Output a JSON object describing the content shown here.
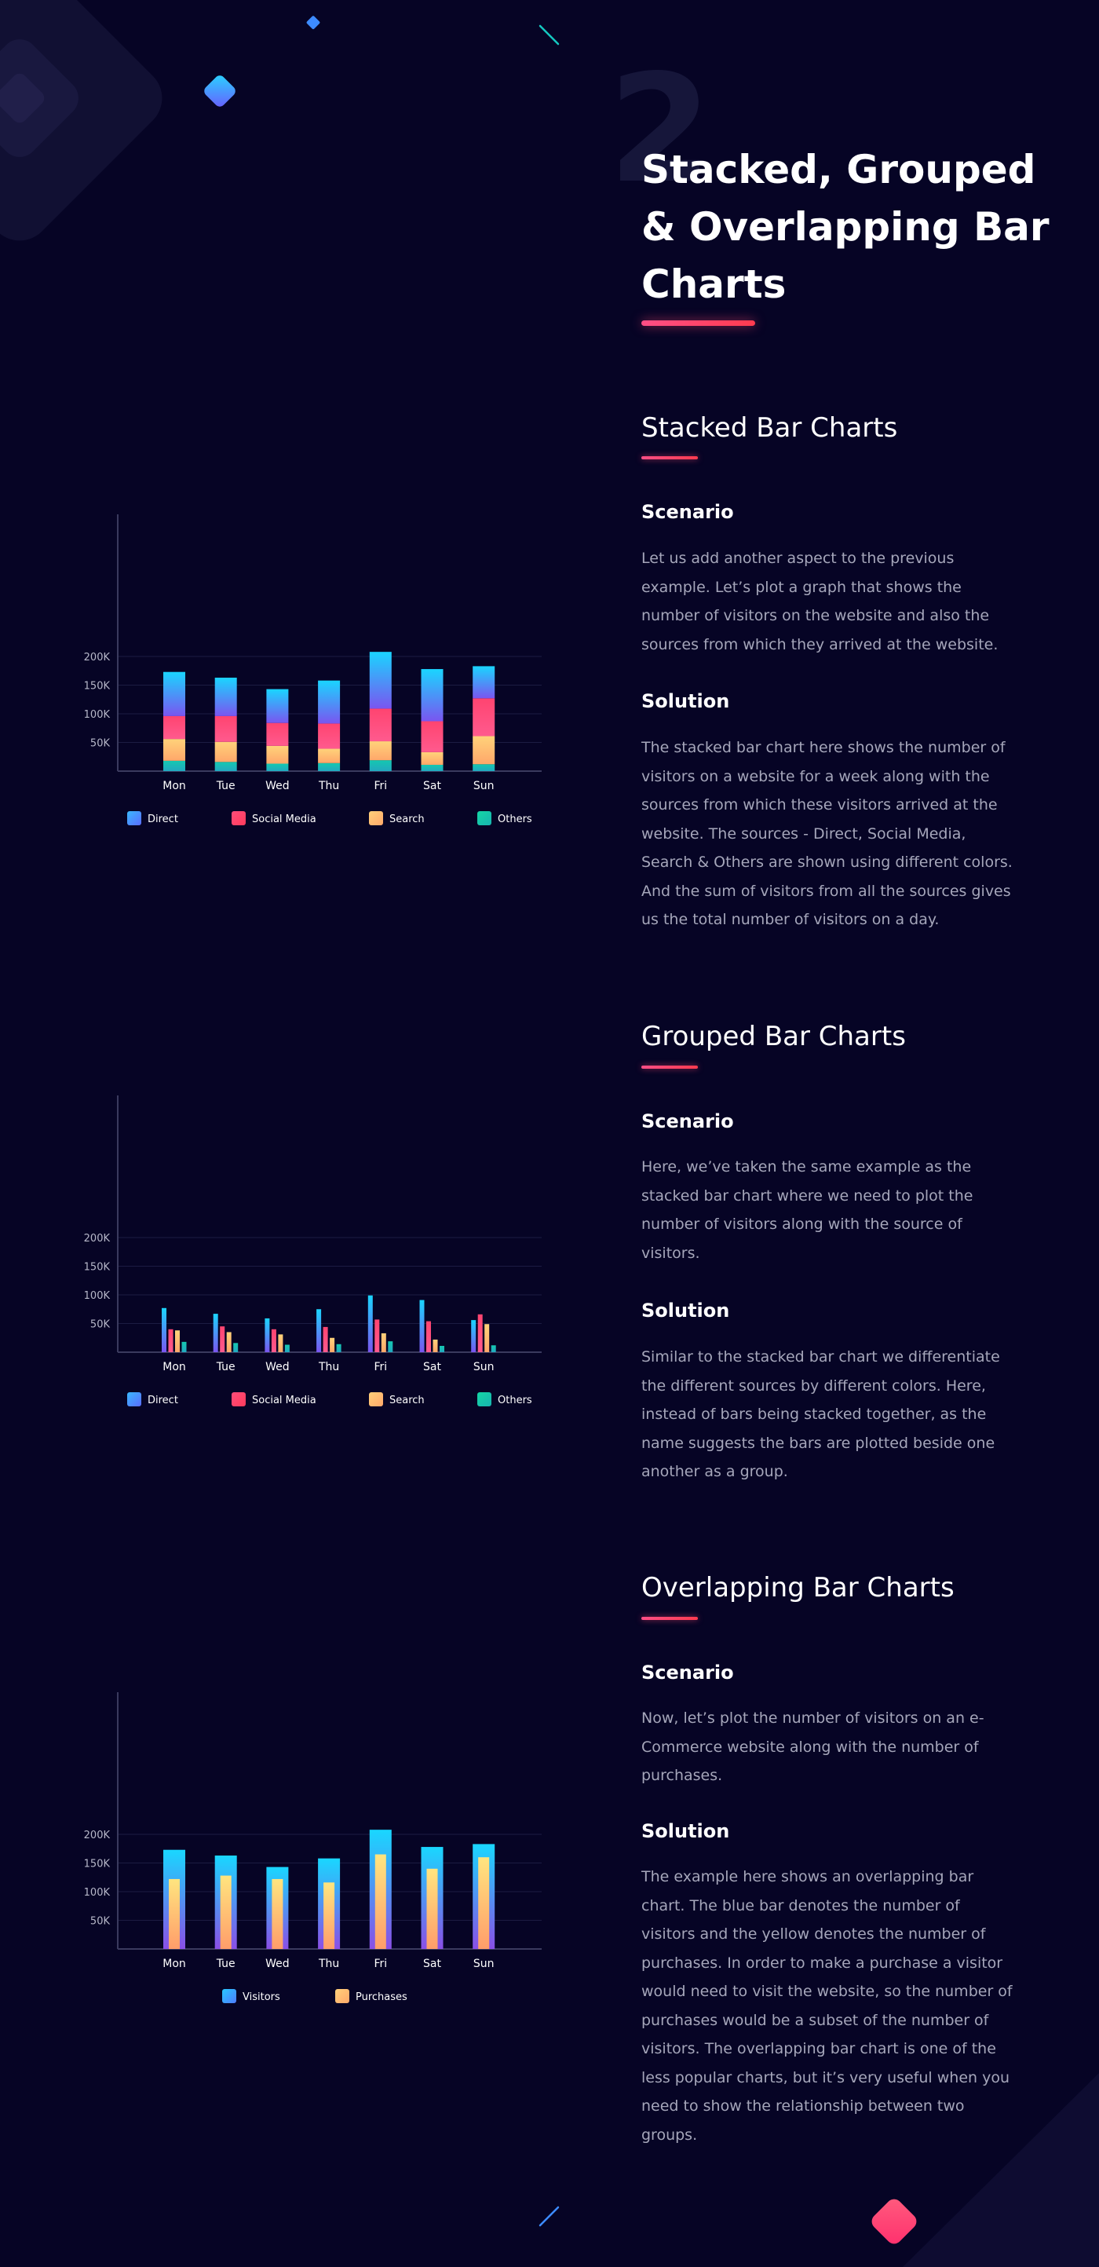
{
  "header": {
    "number": "2",
    "title": "Stacked, Grouped & Overlapping Bar Charts"
  },
  "sections": [
    {
      "title": "Stacked Bar Charts",
      "scenario_heading": "Scenario",
      "scenario_text": "Let us add another aspect to the previous example. Let’s plot a graph that shows the number of visitors on the website and also the sources from which they arrived at the website.",
      "solution_heading": "Solution",
      "solution_text": "The stacked bar chart here shows the number of visitors on a website for a week along with the sources from which these visitors arrived at the website. The sources - Direct, Social Media, Search & Others are shown using different colors. And the sum of visitors from all the sources gives us the total number of visitors on a day."
    },
    {
      "title": "Grouped Bar Charts",
      "scenario_heading": "Scenario",
      "scenario_text": "Here, we’ve taken the same example as the stacked bar chart where we need to plot the number of visitors along with the source of visitors.",
      "solution_heading": "Solution",
      "solution_text": "Similar to the stacked bar chart we differentiate the different sources by different colors. Here, instead of bars being stacked together, as the name suggests the bars are plotted beside one another as a group."
    },
    {
      "title": "Overlapping Bar Charts",
      "scenario_heading": "Scenario",
      "scenario_text": "Now, let’s plot the number of visitors on an e-Commerce website along with the number of purchases.",
      "solution_heading": "Solution",
      "solution_text": "The example here shows an overlapping bar chart. The blue bar denotes the number of visitors and the yellow denotes the number of purchases. In order to make a purchase a visitor would need to visit the website, so the number of purchases would be a subset of the number of visitors. The overlapping bar chart is one of the less popular charts, but it’s very useful when you need to show the relationship between two groups."
    }
  ],
  "colors": {
    "background": "#060425",
    "accent": "#ff4f86",
    "text_muted": "#a5a6ba",
    "direct": "#3d8bff",
    "social_media": "#ff4d7a",
    "search": "#ffc16b",
    "others": "#14c8a5",
    "visitors": "#1ec8ff",
    "purchases": "#ffc878"
  },
  "chart_data": [
    {
      "type": "bar",
      "stacked": true,
      "categories": [
        "Mon",
        "Tue",
        "Wed",
        "Thu",
        "Fri",
        "Sat",
        "Sun"
      ],
      "series": [
        {
          "name": "Direct",
          "values": [
            77,
            67,
            59,
            75,
            99,
            91,
            56
          ]
        },
        {
          "name": "Social Media",
          "values": [
            40,
            45,
            40,
            44,
            57,
            54,
            66
          ]
        },
        {
          "name": "Search",
          "values": [
            38,
            35,
            31,
            25,
            33,
            22,
            49
          ]
        },
        {
          "name": "Others",
          "values": [
            18,
            16,
            13,
            14,
            19,
            11,
            12
          ]
        }
      ],
      "yticks": [
        "50K",
        "100K",
        "150K",
        "200K"
      ],
      "ylim": [
        0,
        200
      ],
      "legend": "bottom",
      "grid": true
    },
    {
      "type": "bar",
      "grouped": true,
      "categories": [
        "Mon",
        "Tue",
        "Wed",
        "Thu",
        "Fri",
        "Sat",
        "Sun"
      ],
      "series": [
        {
          "name": "Direct",
          "values": [
            77,
            67,
            59,
            75,
            99,
            91,
            56
          ]
        },
        {
          "name": "Social Media",
          "values": [
            40,
            45,
            40,
            44,
            57,
            54,
            66
          ]
        },
        {
          "name": "Search",
          "values": [
            38,
            35,
            31,
            25,
            33,
            22,
            49
          ]
        },
        {
          "name": "Others",
          "values": [
            18,
            16,
            13,
            14,
            19,
            11,
            12
          ]
        }
      ],
      "yticks": [
        "50K",
        "100K",
        "150K",
        "200K"
      ],
      "ylim": [
        0,
        200
      ],
      "legend": "bottom",
      "grid": true
    },
    {
      "type": "bar",
      "overlapping": true,
      "categories": [
        "Mon",
        "Tue",
        "Wed",
        "Thu",
        "Fri",
        "Sat",
        "Sun"
      ],
      "series": [
        {
          "name": "Visitors",
          "values": [
            173,
            163,
            143,
            158,
            208,
            178,
            183
          ]
        },
        {
          "name": "Purchases",
          "values": [
            122,
            128,
            122,
            116,
            165,
            140,
            160
          ]
        }
      ],
      "yticks": [
        "50K",
        "100K",
        "150K",
        "200K"
      ],
      "ylim": [
        0,
        200
      ],
      "legend": "bottom",
      "grid": true
    }
  ]
}
